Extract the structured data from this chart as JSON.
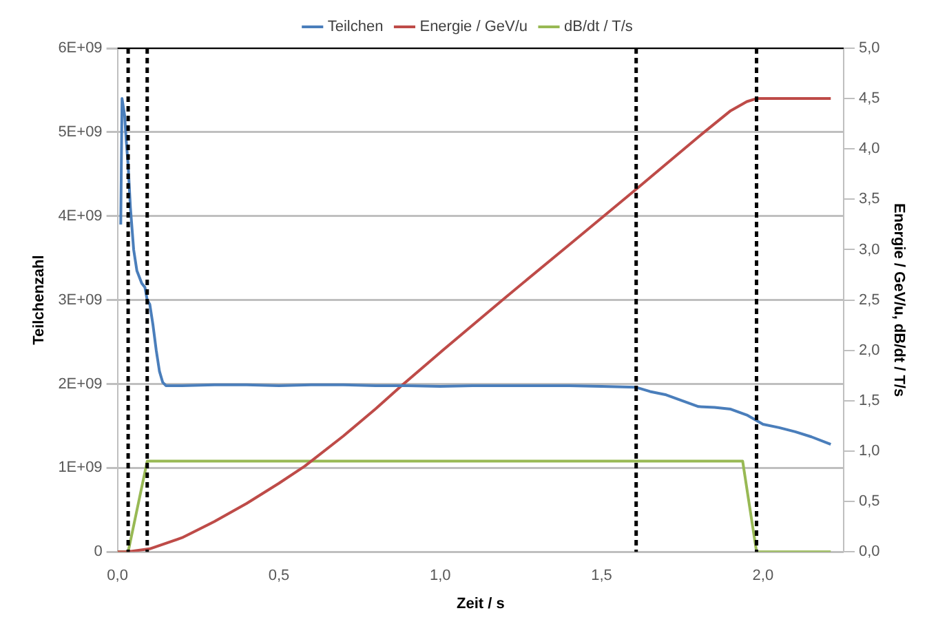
{
  "chart_data": {
    "type": "line",
    "xlabel": "Zeit / s",
    "ylabel": "Teilchenzahl",
    "y2label": "Energie / GeV/u, dB/dt / T/s",
    "xlim": [
      0,
      2.25
    ],
    "xticks": [
      {
        "value": 0,
        "label": "0,0"
      },
      {
        "value": 0.5,
        "label": "0,5"
      },
      {
        "value": 1,
        "label": "1,0"
      },
      {
        "value": 1.5,
        "label": "1,5"
      },
      {
        "value": 2,
        "label": "2,0"
      }
    ],
    "ylim": [
      0,
      6000000000.0
    ],
    "yticks": [
      0,
      {
        "value": 1000000000.0,
        "label": "1E+09"
      },
      {
        "value": 2000000000.0,
        "label": "2E+09"
      },
      {
        "value": 3000000000.0,
        "label": "3E+09"
      },
      {
        "value": 4000000000.0,
        "label": "4E+09"
      },
      {
        "value": 5000000000.0,
        "label": "5E+09"
      },
      {
        "value": 6000000000.0,
        "label": "6E+09"
      }
    ],
    "y2lim": [
      0,
      5
    ],
    "y2ticks": [
      {
        "value": 0,
        "label": "0,0"
      },
      {
        "value": 0.5,
        "label": "0,5"
      },
      {
        "value": 1,
        "label": "1,0"
      },
      {
        "value": 1.5,
        "label": "1,5"
      },
      {
        "value": 2,
        "label": "2,0"
      },
      {
        "value": 2.5,
        "label": "2,5"
      },
      {
        "value": 3,
        "label": "3,0"
      },
      {
        "value": 3.5,
        "label": "3,5"
      },
      {
        "value": 4,
        "label": "4,0"
      },
      {
        "value": 4.5,
        "label": "4,5"
      },
      {
        "value": 5,
        "label": "5,0"
      }
    ],
    "grid": "y",
    "legend": "top",
    "marker": "none",
    "series": [
      {
        "name": "Teilchen",
        "color": "#4a7ebb",
        "x": [
          0.01,
          0.014,
          0.018,
          0.022,
          0.027,
          0.033,
          0.04,
          0.05,
          0.06,
          0.075,
          0.085,
          0.092,
          0.1,
          0.11,
          0.12,
          0.13,
          0.14,
          0.15,
          0.2,
          0.3,
          0.4,
          0.5,
          0.6,
          0.7,
          0.8,
          0.9,
          1.0,
          1.1,
          1.2,
          1.3,
          1.4,
          1.5,
          1.607,
          1.65,
          1.7,
          1.75,
          1.8,
          1.85,
          1.9,
          1.95,
          2.0,
          2.05,
          2.1,
          2.15,
          2.21
        ],
        "values": [
          3900000000.0,
          5400000000.0,
          5300000000.0,
          5200000000.0,
          4900000000.0,
          4600000000.0,
          4100000000.0,
          3600000000.0,
          3350000000.0,
          3200000000.0,
          3150000000.0,
          3000000000.0,
          2950000000.0,
          2700000000.0,
          2400000000.0,
          2150000000.0,
          2020000000.0,
          1980000000.0,
          1980000000.0,
          1990000000.0,
          1990000000.0,
          1980000000.0,
          1990000000.0,
          1990000000.0,
          1980000000.0,
          1980000000.0,
          1970000000.0,
          1980000000.0,
          1980000000.0,
          1980000000.0,
          1980000000.0,
          1970000000.0,
          1960000000.0,
          1910000000.0,
          1870000000.0,
          1800000000.0,
          1730000000.0,
          1720000000.0,
          1700000000.0,
          1630000000.0,
          1520000000.0,
          1480000000.0,
          1430000000.0,
          1370000000.0,
          1280000000.0
        ]
      },
      {
        "name": "Energie / GeV/u",
        "color": "#be4b48",
        "axis": "y2",
        "x": [
          0,
          0.03,
          0.1,
          0.2,
          0.3,
          0.4,
          0.5,
          0.58,
          0.7,
          0.8,
          0.88,
          1.0,
          1.2,
          1.4,
          1.607,
          1.8,
          1.9,
          1.95,
          1.98,
          2.21
        ],
        "values": [
          0,
          0,
          0.03,
          0.14,
          0.3,
          0.48,
          0.68,
          0.85,
          1.15,
          1.42,
          1.65,
          1.98,
          2.52,
          3.05,
          3.6,
          4.12,
          4.38,
          4.47,
          4.5,
          4.5
        ]
      },
      {
        "name": "dB/dt / T/s",
        "color": "#98b954",
        "axis": "y2",
        "x": [
          0,
          0.033,
          0.092,
          1.937,
          1.98,
          2.21
        ],
        "values": [
          0,
          0,
          0.9,
          0.9,
          0,
          0
        ]
      }
    ],
    "ref_lines": [
      {
        "axis": "x",
        "value": 0.033,
        "color": "#000000",
        "line_style": "dashed"
      },
      {
        "axis": "x",
        "value": 0.092,
        "color": "#000000",
        "line_style": "dashed"
      },
      {
        "axis": "x",
        "value": 1.607,
        "color": "#000000",
        "line_style": "dashed"
      },
      {
        "axis": "x",
        "value": 1.98,
        "color": "#000000",
        "line_style": "dashed"
      }
    ]
  }
}
